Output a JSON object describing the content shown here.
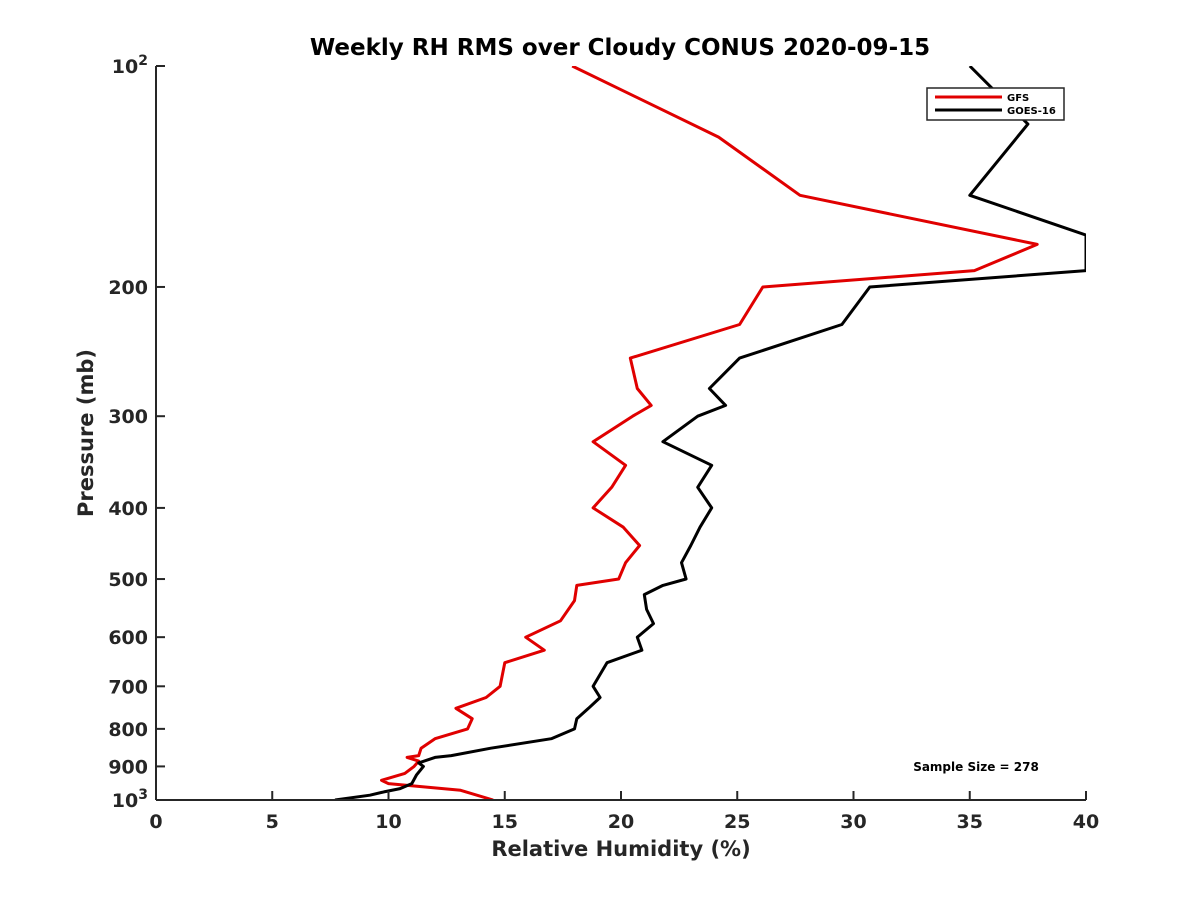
{
  "chart_data": {
    "type": "line",
    "title": "Weekly RH RMS over Cloudy CONUS 2020-09-15",
    "xlabel": "Relative Humidity (%)",
    "ylabel": "Pressure (mb)",
    "xlim": [
      0,
      40
    ],
    "ylim": [
      100,
      1000
    ],
    "y_scale": "log",
    "y_reversed": true,
    "x_ticks": [
      "0",
      "5",
      "10",
      "15",
      "20",
      "25",
      "30",
      "35",
      "40"
    ],
    "y_ticks": [
      {
        "value": 100,
        "base": "10",
        "exp": "2"
      },
      {
        "value": 200,
        "label": "200"
      },
      {
        "value": 300,
        "label": "300"
      },
      {
        "value": 400,
        "label": "400"
      },
      {
        "value": 500,
        "label": "500"
      },
      {
        "value": 600,
        "label": "600"
      },
      {
        "value": 700,
        "label": "700"
      },
      {
        "value": 800,
        "label": "800"
      },
      {
        "value": 900,
        "label": "900"
      },
      {
        "value": 1000,
        "base": "10",
        "exp": "3"
      }
    ],
    "grid": false,
    "legend_position": "top-right",
    "series": [
      {
        "name": "GFS",
        "color": "#e00000",
        "points": [
          [
            17.9,
            100
          ],
          [
            24.2,
            125
          ],
          [
            27.7,
            150
          ],
          [
            37.9,
            175
          ],
          [
            35.2,
            190
          ],
          [
            26.1,
            200
          ],
          [
            25.1,
            225
          ],
          [
            20.4,
            250
          ],
          [
            20.7,
            275
          ],
          [
            21.3,
            290
          ],
          [
            20.5,
            300
          ],
          [
            18.8,
            325
          ],
          [
            20.2,
            350
          ],
          [
            19.6,
            375
          ],
          [
            18.8,
            400
          ],
          [
            20.1,
            425
          ],
          [
            20.8,
            450
          ],
          [
            20.2,
            475
          ],
          [
            19.9,
            500
          ],
          [
            18.1,
            510
          ],
          [
            18.0,
            535
          ],
          [
            17.4,
            570
          ],
          [
            15.9,
            600
          ],
          [
            16.7,
            625
          ],
          [
            15.0,
            650
          ],
          [
            14.8,
            700
          ],
          [
            14.2,
            725
          ],
          [
            12.9,
            750
          ],
          [
            13.6,
            775
          ],
          [
            13.4,
            800
          ],
          [
            12.0,
            825
          ],
          [
            11.4,
            850
          ],
          [
            11.3,
            870
          ],
          [
            10.8,
            875
          ],
          [
            11.3,
            885
          ],
          [
            11.1,
            900
          ],
          [
            10.7,
            920
          ],
          [
            9.7,
            940
          ],
          [
            10.0,
            950
          ],
          [
            13.1,
            970
          ],
          [
            14.5,
            1000
          ]
        ]
      },
      {
        "name": "GOES-16",
        "color": "#000000",
        "points": [
          [
            35.0,
            100
          ],
          [
            37.5,
            120
          ],
          [
            35.0,
            150
          ],
          [
            40.0,
            170
          ],
          [
            40.0,
            190
          ],
          [
            30.7,
            200
          ],
          [
            29.5,
            225
          ],
          [
            25.1,
            250
          ],
          [
            23.8,
            275
          ],
          [
            24.5,
            290
          ],
          [
            23.3,
            300
          ],
          [
            21.8,
            325
          ],
          [
            23.9,
            350
          ],
          [
            23.3,
            375
          ],
          [
            23.9,
            400
          ],
          [
            23.4,
            425
          ],
          [
            23.0,
            450
          ],
          [
            22.6,
            475
          ],
          [
            22.8,
            500
          ],
          [
            21.8,
            510
          ],
          [
            21.0,
            525
          ],
          [
            21.1,
            550
          ],
          [
            21.4,
            575
          ],
          [
            20.7,
            600
          ],
          [
            20.9,
            625
          ],
          [
            19.4,
            650
          ],
          [
            18.8,
            700
          ],
          [
            19.1,
            725
          ],
          [
            18.6,
            750
          ],
          [
            18.1,
            775
          ],
          [
            18.0,
            800
          ],
          [
            17.0,
            825
          ],
          [
            14.4,
            850
          ],
          [
            12.7,
            870
          ],
          [
            12.0,
            875
          ],
          [
            11.3,
            890
          ],
          [
            11.5,
            900
          ],
          [
            11.2,
            925
          ],
          [
            11.0,
            950
          ],
          [
            10.5,
            965
          ],
          [
            9.8,
            975
          ],
          [
            9.2,
            985
          ],
          [
            7.7,
            1000
          ]
        ]
      }
    ],
    "annotation": "Sample Size = 278"
  }
}
